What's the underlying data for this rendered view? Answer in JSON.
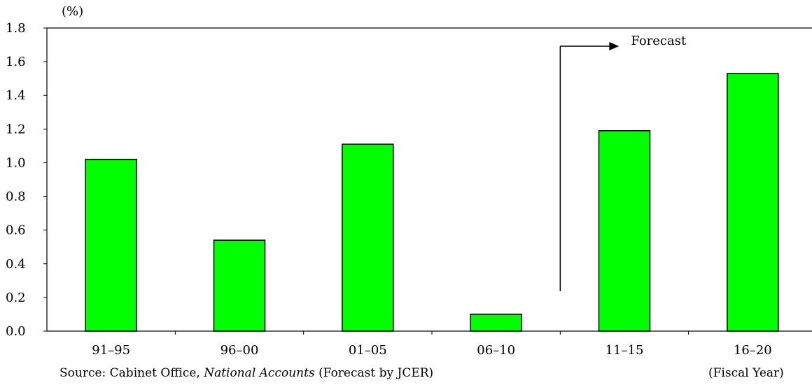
{
  "chart_data": {
    "type": "bar",
    "unit_label": "(%)",
    "categories": [
      "91–95",
      "96–00",
      "01–05",
      "06–10",
      "11–15",
      "16–20"
    ],
    "values": [
      1.02,
      0.54,
      1.11,
      0.1,
      1.19,
      1.53
    ],
    "ylim": [
      0,
      1.8
    ],
    "yticks": [
      "0.0",
      "0.2",
      "0.4",
      "0.6",
      "0.8",
      "1.0",
      "1.2",
      "1.4",
      "1.6",
      "1.8"
    ],
    "bar_color": "#00ff00",
    "forecast_label": "Forecast",
    "forecast_start_category_index": 4,
    "xlabel": "(Fiscal Year)",
    "grid": false
  },
  "source": {
    "prefix": "Source: Cabinet Office, ",
    "title": "National Accounts",
    "suffix": " (Forecast by JCER)"
  }
}
